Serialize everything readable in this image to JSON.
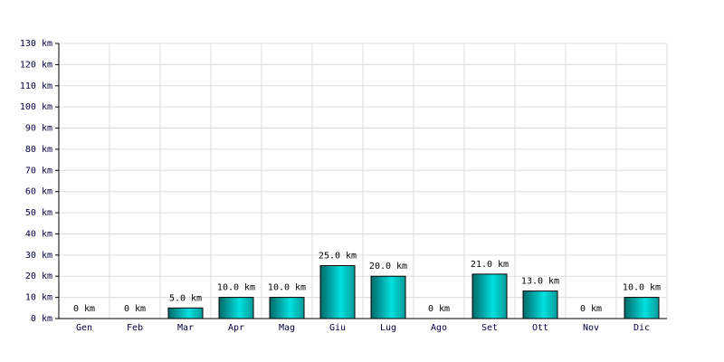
{
  "chart_data": {
    "type": "bar",
    "categories": [
      "Gen",
      "Feb",
      "Mar",
      "Apr",
      "Mag",
      "Giu",
      "Lug",
      "Ago",
      "Set",
      "Ott",
      "Nov",
      "Dic"
    ],
    "values": [
      0,
      0,
      5,
      10,
      10,
      25,
      20,
      0,
      21,
      13,
      0,
      10
    ],
    "value_labels": [
      "0 km",
      "0 km",
      "5.0 km",
      "10.0 km",
      "10.0 km",
      "25.0 km",
      "20.0 km",
      "0 km",
      "21.0 km",
      "13.0 km",
      "0 km",
      "10.0 km"
    ],
    "color": "#00e0e0",
    "ylim": [
      0,
      130
    ],
    "yticks": [
      {
        "value": 0,
        "label": "0 km"
      },
      {
        "value": 10,
        "label": "10 km"
      },
      {
        "value": 20,
        "label": "20 km"
      },
      {
        "value": 30,
        "label": "30 km"
      },
      {
        "value": 40,
        "label": "40 km"
      },
      {
        "value": 50,
        "label": "50 km"
      },
      {
        "value": 60,
        "label": "60 km"
      },
      {
        "value": 70,
        "label": "70 km"
      },
      {
        "value": 80,
        "label": "80 km"
      },
      {
        "value": 90,
        "label": "90 km"
      },
      {
        "value": 100,
        "label": "100 km"
      },
      {
        "value": 110,
        "label": "110 km"
      },
      {
        "value": 120,
        "label": "120 km"
      },
      {
        "value": 130,
        "label": "130 km"
      }
    ],
    "grid": true
  }
}
